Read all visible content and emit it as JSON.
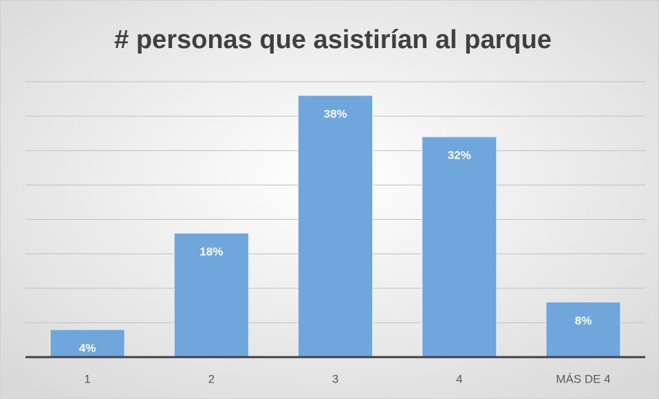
{
  "chart_data": {
    "type": "bar",
    "title": "# personas que asistirían al parque",
    "categories": [
      "1",
      "2",
      "3",
      "4",
      "MÁS DE 4"
    ],
    "values": [
      4,
      18,
      38,
      32,
      8
    ],
    "value_labels": [
      "4%",
      "18%",
      "38%",
      "32%",
      "8%"
    ],
    "color": "#6fa6db",
    "ylim": [
      0,
      40
    ],
    "yticks": [
      0,
      5,
      10,
      15,
      20,
      25,
      30,
      35,
      40
    ],
    "grid": true
  }
}
